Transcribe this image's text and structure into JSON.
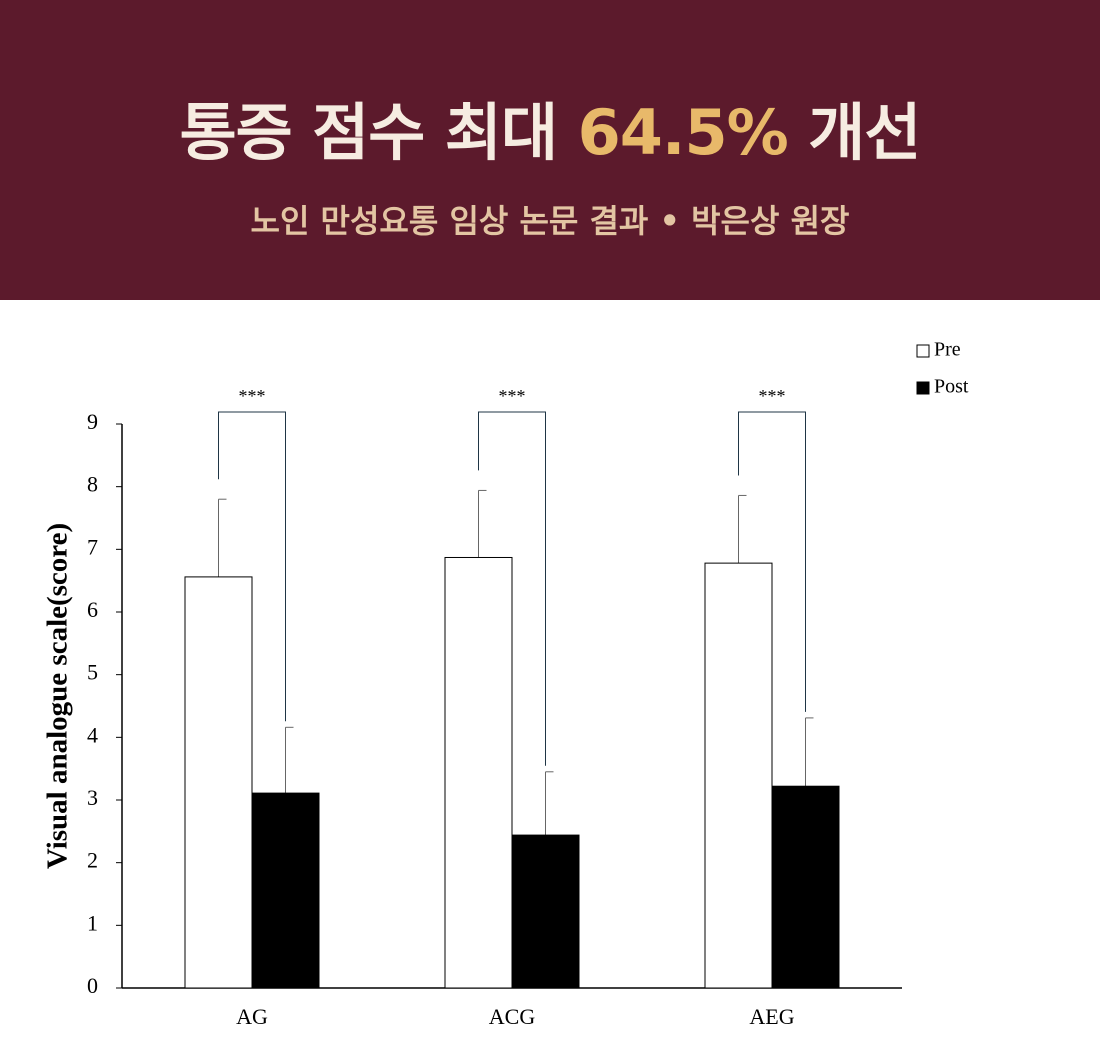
{
  "header": {
    "title": [
      "통증 점수 최대",
      "64.5%",
      "개선"
    ],
    "subtitle": "노인 만성요통 임상 논문 결과 • 박은상 원장"
  },
  "chart_data": {
    "type": "bar",
    "ylabel": "Visual analogue scale(score)",
    "categories": [
      "AG",
      "ACG",
      "AEG"
    ],
    "series": [
      {
        "name": "Pre",
        "color": "#ffffff",
        "values": [
          6.56,
          6.87,
          6.78
        ],
        "errors": [
          1.24,
          1.07,
          1.08
        ]
      },
      {
        "name": "Post",
        "color": "#000000",
        "values": [
          3.11,
          2.44,
          3.22
        ],
        "errors": [
          1.05,
          1.01,
          1.09
        ]
      }
    ],
    "annotations": [
      "***",
      "***",
      "***"
    ],
    "ylim": [
      0,
      9
    ],
    "yticks": [
      0,
      1,
      2,
      3,
      4,
      5,
      6,
      7,
      8,
      9
    ],
    "grid": false,
    "legend": "top-right"
  }
}
